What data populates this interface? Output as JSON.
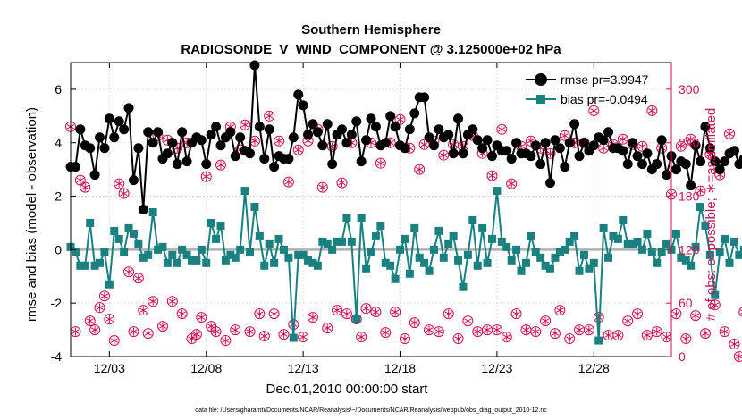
{
  "colors": {
    "rmse": "#000000",
    "bias": "#1a8080",
    "obs": "#cc1155",
    "grid": "#dddddd",
    "zero_line": "#b0b0b0"
  },
  "chart_data": {
    "type": "line",
    "title": "Southern Hemisphere",
    "subtitle": "RADIOSONDE_V_WIND_COMPONENT @ 3.125000e+02 hPa",
    "xlabel": "Dec.01,2010 00:00:00 start",
    "ylabel": "rmse and bias (model - observation)",
    "ylabel_right": "# of obs: o=possible; ∗=assimilated",
    "footnote": "data file: /Users/gharamti/Documents/NCAR/Reanalysis/~/Documents/NCAR/Reanalysis/webpub/obs_diag_output_2010-12.nc",
    "xlim": [
      1,
      32
    ],
    "ylim": [
      -4,
      7
    ],
    "ylim_right": [
      0,
      330
    ],
    "x_ticks": [
      3,
      8,
      13,
      18,
      23,
      28
    ],
    "x_tick_labels": [
      "12/03",
      "12/08",
      "12/13",
      "12/18",
      "12/23",
      "12/28"
    ],
    "y_ticks": [
      -4,
      -2,
      0,
      2,
      4,
      6
    ],
    "y_tick_labels": [
      "-4",
      "-2",
      "0",
      "2",
      "4",
      "6"
    ],
    "y_ticks_right": [
      0,
      60,
      120,
      180,
      240,
      300
    ],
    "y_tick_labels_right": [
      "0",
      "60",
      "120",
      "180",
      "240",
      "300"
    ],
    "x_start": 1,
    "x_step": 0.25,
    "series": [
      {
        "name": "rmse",
        "legend": "rmse pr=3.9947",
        "values": [
          3.1,
          3.1,
          4.5,
          3.9,
          3.8,
          2.8,
          4.2,
          3.8,
          4.9,
          4.2,
          4.8,
          4.5,
          5.3,
          2.6,
          3.8,
          1.5,
          4.4,
          4.0,
          4.4,
          3.4,
          3.6,
          4.0,
          3.2,
          4.4,
          3.3,
          4.0,
          4.2,
          4.1,
          3.2,
          4.3,
          4.6,
          3.9,
          4.2,
          4.4,
          3.5,
          4.2,
          3.7,
          3.6,
          6.9,
          4.6,
          3.4,
          4.5,
          3.1,
          3.5,
          3.4,
          3.4,
          4.2,
          5.8,
          5.4,
          4.3,
          4.7,
          4.4,
          3.9,
          4.7,
          3.2,
          4.3,
          4.5,
          4.0,
          4.3,
          4.8,
          3.3,
          4.1,
          4.9,
          4.6,
          3.9,
          4.0,
          5.0,
          4.6,
          3.9,
          3.8,
          4.5,
          5.1,
          5.7,
          5.7,
          4.2,
          3.9,
          4.5,
          4.2,
          4.3,
          3.6,
          4.9,
          3.6,
          4.3,
          4.5,
          4.1,
          3.8,
          4.1,
          3.5,
          3.9,
          3.7,
          3.7,
          3.4,
          4.0,
          3.6,
          3.6,
          3.5,
          3.9,
          3.2,
          4.0,
          2.5,
          4.1,
          3.8,
          3.1,
          4.0,
          4.7,
          3.5,
          4.0,
          3.7,
          3.9,
          4.2,
          4.1,
          4.4,
          3.8,
          3.8,
          3.7,
          3.2,
          4.0,
          3.5,
          3.2,
          3.6,
          3.0,
          3.2,
          4.1,
          2.8,
          3.5,
          3.0,
          3.3,
          3.2,
          2.4,
          3.9,
          3.3,
          4.6,
          3.8,
          3.3,
          3.0,
          3.3,
          3.6,
          3.7,
          3.2,
          3.4,
          4.6
        ]
      },
      {
        "name": "bias",
        "legend": "bias pr=-0.0494",
        "values": [
          0.1,
          -0.1,
          -0.6,
          -0.6,
          1.0,
          -0.6,
          -0.5,
          -0.1,
          -1.3,
          0.7,
          0.4,
          -0.1,
          0.8,
          0.6,
          0.2,
          -0.3,
          -0.2,
          1.4,
          0.0,
          0.1,
          -0.5,
          -0.2,
          -0.5,
          0.0,
          -0.2,
          -0.4,
          -0.4,
          0.0,
          -0.5,
          1.0,
          0.4,
          0.9,
          -0.4,
          -0.2,
          -0.3,
          0.0,
          2.2,
          -0.1,
          1.6,
          0.5,
          -0.6,
          0.2,
          -0.5,
          0.4,
          0.0,
          -0.3,
          -3.3,
          -0.2,
          -0.2,
          -0.4,
          -0.5,
          -0.6,
          0.3,
          0.2,
          0.0,
          0.3,
          0.3,
          1.2,
          0.3,
          -2.6,
          1.2,
          -0.7,
          -0.1,
          0.5,
          0.9,
          -0.5,
          -0.6,
          -1.1,
          0.0,
          0.4,
          -0.9,
          0.8,
          -0.3,
          -0.5,
          -0.8,
          0.0,
          0.7,
          -0.3,
          0.2,
          0.5,
          -0.4,
          -1.4,
          -0.2,
          1.1,
          -0.6,
          0.8,
          -0.5,
          0.4,
          2.2,
          0.3,
          0.1,
          -0.4,
          0.0,
          -0.8,
          -0.5,
          0.5,
          -0.1,
          -0.3,
          -0.6,
          -0.7,
          -0.3,
          -0.1,
          0.0,
          0.3,
          0.5,
          -0.8,
          -0.2,
          -0.7,
          -0.5,
          -3.4,
          0.8,
          -0.3,
          0.5,
          0.4,
          1.1,
          0.2,
          0.2,
          0.3,
          0.0,
          0.6,
          -0.1,
          -0.5,
          -0.1,
          0.2,
          0.0,
          0.6,
          -0.3,
          -0.4,
          -0.6,
          0.1,
          1.6,
          0.9,
          -0.2,
          -1.7,
          -0.1,
          0.4,
          -0.5,
          0.3,
          -0.2,
          0.0,
          -0.4,
          -0.2,
          -0.5,
          -0.6,
          -0.4,
          -0.3,
          0.0
        ]
      },
      {
        "name": "possible",
        "legend": "",
        "values": [
          258,
          28,
          198,
          190,
          40,
          30,
          55,
          68,
          42,
          18,
          194,
          183,
          95,
          28,
          88,
          52,
          26,
          62,
          248,
          34,
          243,
          62,
          234,
          48,
          240,
          20,
          25,
          44,
          202,
          34,
          28,
          215,
          18,
          258,
          30,
          232,
          260,
          28,
          242,
          48,
          23,
          270,
          48,
          242,
          25,
          196,
          36,
          232,
          22,
          242,
          44,
          255,
          190,
          32,
          236,
          52,
          195,
          48,
          240,
          42,
          22,
          54,
          240,
          50,
          217,
          27,
          240,
          50,
          266,
          20,
          234,
          38,
          210,
          238,
          30,
          242,
          28,
          226,
          48,
          238,
          20,
          236,
          40,
          248,
          28,
          228,
          30,
          203,
          30,
          255,
          22,
          194,
          48,
          236,
          30,
          242,
          28,
          234,
          40,
          228,
          26,
          52,
          248,
          20,
          240,
          30,
          240,
          30,
          276,
          44,
          234,
          24,
          238,
          24,
          244,
          40,
          238,
          48,
          236,
          24,
          276,
          28,
          234,
          22,
          182,
          48,
          236,
          20,
          244,
          46,
          186,
          26,
          227,
          58,
          204,
          28,
          250,
          14,
          0,
          50,
          196,
          40,
          252,
          208,
          32
        ]
      },
      {
        "name": "assimilated",
        "legend": "",
        "values": [
          258,
          28,
          198,
          190,
          40,
          30,
          55,
          68,
          42,
          18,
          194,
          183,
          95,
          28,
          88,
          52,
          26,
          62,
          248,
          34,
          243,
          62,
          234,
          48,
          240,
          20,
          25,
          44,
          202,
          34,
          28,
          215,
          18,
          258,
          30,
          232,
          260,
          28,
          242,
          48,
          23,
          270,
          48,
          242,
          25,
          196,
          36,
          232,
          22,
          242,
          44,
          255,
          190,
          32,
          236,
          52,
          195,
          48,
          240,
          42,
          22,
          54,
          240,
          50,
          217,
          27,
          240,
          50,
          266,
          20,
          234,
          38,
          210,
          238,
          30,
          242,
          28,
          226,
          48,
          238,
          20,
          236,
          40,
          248,
          28,
          228,
          30,
          203,
          30,
          255,
          22,
          194,
          48,
          236,
          30,
          242,
          28,
          234,
          40,
          228,
          26,
          52,
          248,
          20,
          240,
          30,
          240,
          30,
          276,
          44,
          234,
          24,
          238,
          24,
          244,
          40,
          238,
          48,
          236,
          24,
          276,
          28,
          234,
          22,
          182,
          48,
          236,
          20,
          244,
          46,
          186,
          26,
          227,
          58,
          204,
          28,
          250,
          14,
          0,
          50,
          196,
          40,
          252,
          208,
          32
        ]
      }
    ]
  }
}
